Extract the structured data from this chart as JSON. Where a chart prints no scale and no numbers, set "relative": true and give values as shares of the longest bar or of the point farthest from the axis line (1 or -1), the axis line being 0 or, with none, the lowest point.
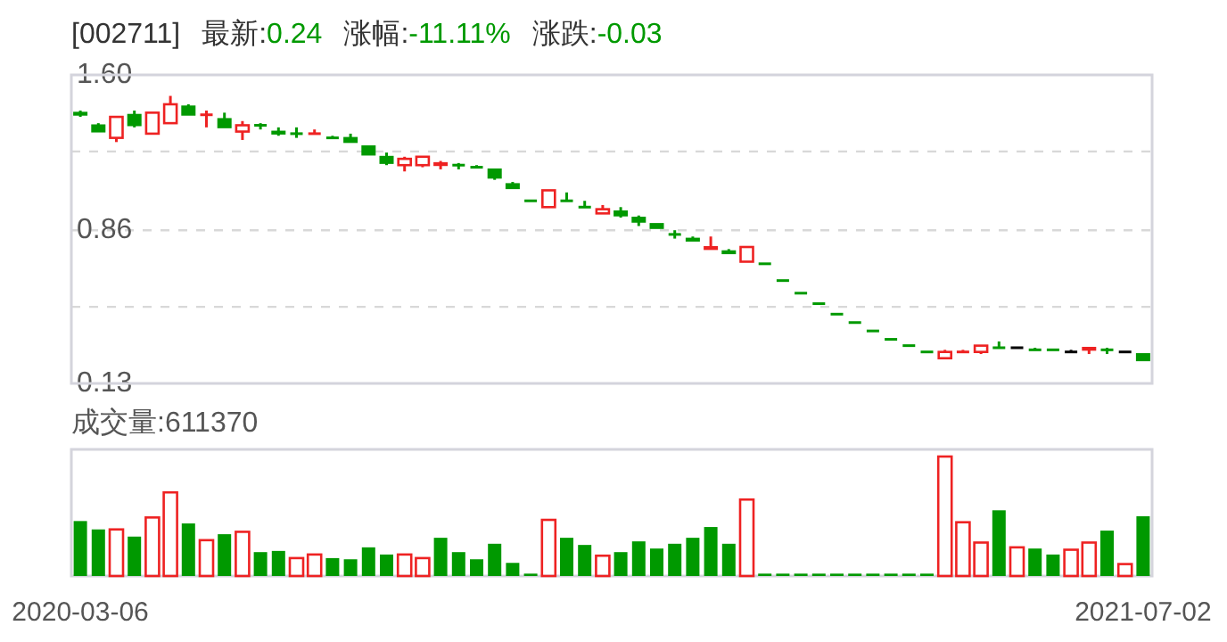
{
  "chart_data": [
    {
      "type": "candlestick",
      "title": "[002711]",
      "annotations": [
        "最新:",
        "0.24",
        "涨幅:",
        "-11.11%",
        "涨跌:",
        "-0.03"
      ],
      "categories": [
        null,
        null,
        null,
        null,
        null,
        null,
        null,
        null,
        null,
        null,
        null,
        null,
        null,
        null,
        null,
        null,
        null,
        null,
        null,
        null,
        null,
        null,
        null,
        null,
        null,
        null,
        null,
        null,
        null,
        null,
        null,
        null,
        null,
        null,
        null,
        null,
        null,
        null,
        null,
        null,
        null,
        null,
        null,
        null,
        null,
        null,
        null,
        null,
        null,
        null,
        null,
        null,
        null,
        null,
        null,
        null,
        null,
        null,
        null,
        null
      ],
      "ohlc": [
        [
          1.42,
          1.43,
          1.4,
          1.41
        ],
        [
          1.36,
          1.37,
          1.33,
          1.33
        ],
        [
          1.3,
          1.4,
          1.28,
          1.4
        ],
        [
          1.41,
          1.43,
          1.35,
          1.36
        ],
        [
          1.32,
          1.42,
          1.32,
          1.42
        ],
        [
          1.37,
          1.5,
          1.37,
          1.46
        ],
        [
          1.45,
          1.46,
          1.41,
          1.41
        ],
        [
          1.41,
          1.43,
          1.35,
          1.41
        ],
        [
          1.39,
          1.42,
          1.35,
          1.35
        ],
        [
          1.33,
          1.38,
          1.29,
          1.36
        ],
        [
          1.36,
          1.37,
          1.34,
          1.36
        ],
        [
          1.33,
          1.35,
          1.31,
          1.32
        ],
        [
          1.32,
          1.35,
          1.3,
          1.32
        ],
        [
          1.32,
          1.34,
          1.32,
          1.32
        ],
        [
          1.3,
          1.31,
          1.3,
          1.3
        ],
        [
          1.3,
          1.32,
          1.28,
          1.28
        ],
        [
          1.26,
          1.26,
          1.22,
          1.22
        ],
        [
          1.21,
          1.23,
          1.17,
          1.18
        ],
        [
          1.17,
          1.21,
          1.14,
          1.2
        ],
        [
          1.17,
          1.21,
          1.16,
          1.21
        ],
        [
          1.18,
          1.19,
          1.15,
          1.17
        ],
        [
          1.17,
          1.18,
          1.15,
          1.17
        ],
        [
          1.16,
          1.17,
          1.16,
          1.16
        ],
        [
          1.15,
          1.15,
          1.1,
          1.11
        ],
        [
          1.08,
          1.09,
          1.06,
          1.06
        ],
        [
          1.0,
          1.0,
          1.0,
          1.0
        ],
        [
          0.97,
          1.05,
          0.97,
          1.05
        ],
        [
          1.0,
          1.04,
          1.0,
          1.0
        ],
        [
          0.97,
          1.0,
          0.97,
          0.97
        ],
        [
          0.94,
          0.98,
          0.94,
          0.96
        ],
        [
          0.95,
          0.97,
          0.92,
          0.93
        ],
        [
          0.92,
          0.93,
          0.88,
          0.9
        ],
        [
          0.89,
          0.89,
          0.87,
          0.87
        ],
        [
          0.84,
          0.86,
          0.82,
          0.84
        ],
        [
          0.82,
          0.83,
          0.81,
          0.81
        ],
        [
          0.78,
          0.83,
          0.77,
          0.77
        ],
        [
          0.76,
          0.77,
          0.75,
          0.75
        ],
        [
          0.71,
          0.78,
          0.71,
          0.78
        ],
        [
          0.7,
          0.7,
          0.7,
          0.7
        ],
        [
          0.62,
          0.62,
          0.62,
          0.62
        ],
        [
          0.56,
          0.56,
          0.56,
          0.56
        ],
        [
          0.51,
          0.51,
          0.51,
          0.51
        ],
        [
          0.46,
          0.46,
          0.46,
          0.46
        ],
        [
          0.42,
          0.42,
          0.42,
          0.42
        ],
        [
          0.38,
          0.38,
          0.38,
          0.38
        ],
        [
          0.34,
          0.34,
          0.34,
          0.34
        ],
        [
          0.31,
          0.31,
          0.31,
          0.31
        ],
        [
          0.28,
          0.28,
          0.28,
          0.28
        ],
        [
          0.25,
          0.29,
          0.25,
          0.28
        ],
        [
          0.28,
          0.29,
          0.28,
          0.28
        ],
        [
          0.28,
          0.31,
          0.27,
          0.31
        ],
        [
          0.3,
          0.33,
          0.3,
          0.3
        ],
        [
          0.3,
          0.3,
          0.3,
          0.3
        ],
        [
          0.29,
          0.3,
          0.29,
          0.29
        ],
        [
          0.29,
          0.29,
          0.29,
          0.29
        ],
        [
          0.28,
          0.29,
          0.28,
          0.28
        ],
        [
          0.3,
          0.3,
          0.27,
          0.29
        ],
        [
          0.29,
          0.3,
          0.27,
          0.29
        ],
        [
          0.28,
          0.28,
          0.28,
          0.28
        ],
        [
          0.27,
          0.27,
          0.24,
          0.24
        ]
      ],
      "colors": [
        "#009900",
        "#009900",
        "#ee2222",
        "#009900",
        "#ee2222",
        "#ee2222",
        "#009900",
        "#ee2222",
        "#009900",
        "#ee2222",
        "#009900",
        "#009900",
        "#009900",
        "#ee2222",
        "#009900",
        "#009900",
        "#009900",
        "#009900",
        "#ee2222",
        "#ee2222",
        "#ee2222",
        "#009900",
        "#009900",
        "#009900",
        "#009900",
        "#009900",
        "#ee2222",
        "#009900",
        "#009900",
        "#ee2222",
        "#009900",
        "#009900",
        "#009900",
        "#009900",
        "#009900",
        "#ee2222",
        "#009900",
        "#ee2222",
        "#009900",
        "#009900",
        "#009900",
        "#009900",
        "#009900",
        "#009900",
        "#009900",
        "#009900",
        "#009900",
        "#009900",
        "#ee2222",
        "#ee2222",
        "#ee2222",
        "#009900",
        "#000000",
        "#009900",
        "#009900",
        "#000000",
        "#ee2222",
        "#009900",
        "#000000",
        "#009900"
      ],
      "ylim": [
        0.13,
        1.6
      ],
      "yticks": [
        {
          "value": 0.13,
          "label": "0.13"
        },
        {
          "value": 0.495,
          "label": null
        },
        {
          "value": 0.86,
          "label": "0.86"
        },
        {
          "value": 1.235,
          "label": null
        },
        {
          "value": 1.6,
          "label": "1.60"
        }
      ],
      "grid": "y",
      "tick_labels": "y"
    },
    {
      "type": "bar",
      "title": "成交量:611370",
      "relative": true,
      "categories": [
        "2020-03-06",
        null,
        null,
        null,
        null,
        null,
        null,
        null,
        null,
        null,
        null,
        null,
        null,
        null,
        null,
        null,
        null,
        null,
        null,
        null,
        null,
        null,
        null,
        null,
        null,
        null,
        null,
        null,
        null,
        null,
        null,
        null,
        null,
        null,
        null,
        null,
        null,
        null,
        null,
        null,
        null,
        null,
        null,
        null,
        null,
        null,
        null,
        null,
        null,
        null,
        null,
        null,
        null,
        null,
        null,
        null,
        null,
        null,
        null,
        "2021-07-02"
      ],
      "values": [
        0.46,
        0.39,
        0.39,
        0.33,
        0.49,
        0.7,
        0.44,
        0.3,
        0.35,
        0.37,
        0.2,
        0.21,
        0.15,
        0.18,
        0.15,
        0.14,
        0.24,
        0.18,
        0.18,
        0.15,
        0.32,
        0.2,
        0.14,
        0.27,
        0.11,
        0.02,
        0.47,
        0.32,
        0.26,
        0.17,
        0.2,
        0.29,
        0.23,
        0.27,
        0.32,
        0.41,
        0.27,
        0.64,
        0.02,
        0.02,
        0.02,
        0.02,
        0.02,
        0.02,
        0.02,
        0.02,
        0.02,
        0.02,
        1.0,
        0.45,
        0.28,
        0.55,
        0.24,
        0.23,
        0.18,
        0.22,
        0.28,
        0.38,
        0.1,
        0.5
      ],
      "colors": [
        "#009900",
        "#009900",
        "#ee2222",
        "#009900",
        "#ee2222",
        "#ee2222",
        "#009900",
        "#ee2222",
        "#009900",
        "#ee2222",
        "#009900",
        "#009900",
        "#ee2222",
        "#ee2222",
        "#009900",
        "#009900",
        "#009900",
        "#009900",
        "#ee2222",
        "#ee2222",
        "#009900",
        "#009900",
        "#009900",
        "#009900",
        "#009900",
        "#009900",
        "#ee2222",
        "#009900",
        "#009900",
        "#ee2222",
        "#009900",
        "#009900",
        "#009900",
        "#009900",
        "#009900",
        "#009900",
        "#009900",
        "#ee2222",
        "#009900",
        "#009900",
        "#009900",
        "#009900",
        "#009900",
        "#009900",
        "#009900",
        "#009900",
        "#009900",
        "#009900",
        "#ee2222",
        "#ee2222",
        "#ee2222",
        "#009900",
        "#ee2222",
        "#009900",
        "#009900",
        "#ee2222",
        "#ee2222",
        "#009900",
        "#ee2222",
        "#009900"
      ],
      "tick_labels": "x"
    }
  ]
}
